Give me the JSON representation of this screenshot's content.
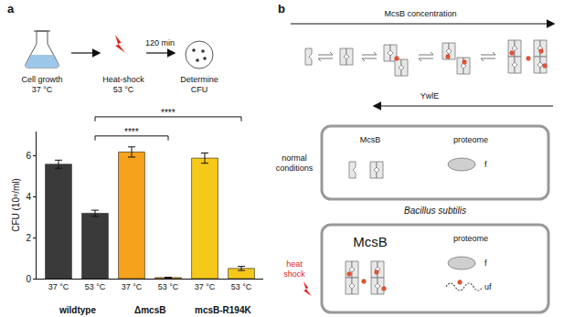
{
  "chart_data": {
    "type": "bar",
    "y_label": "CFU (10⁸/ml)",
    "categories": [
      "37 °C",
      "53 °C",
      "37 °C",
      "53 °C",
      "37 °C",
      "53 °C"
    ],
    "groups": [
      "wildtype",
      "ΔmcsB",
      "mcsB-R194K"
    ],
    "values": [
      5.6,
      3.2,
      6.2,
      0.05,
      5.9,
      0.5
    ],
    "errors": [
      0.2,
      0.15,
      0.25,
      0.02,
      0.25,
      0.1
    ],
    "colors": [
      "#3a3a3a",
      "#3a3a3a",
      "#f5a21c",
      "#f5a21c",
      "#f6c81a",
      "#f6c81a"
    ],
    "ylim": [
      0,
      7.2
    ],
    "yticks": [
      0,
      2,
      4,
      6
    ],
    "grid": false,
    "annotations": [
      {
        "from": 1,
        "to": 3,
        "text": "****"
      },
      {
        "from": 1,
        "to": 5,
        "text": "****"
      }
    ]
  },
  "figure": {
    "panel_labels": [
      "a",
      "b"
    ],
    "workflow": {
      "steps": [
        [
          "Cell growth",
          "37 °C"
        ],
        [
          "Heat-shock",
          "53 °C"
        ],
        [
          "Determine",
          "CFU"
        ]
      ],
      "duration": "120 min"
    },
    "model": {
      "top_arrow": "McsB concentration",
      "bottom_arrow": "YwlE",
      "organism": "Bacillus subtilis",
      "conditions": [
        {
          "label": [
            "normal",
            "conditions"
          ],
          "mcsb": "McsB",
          "proteome": "proteome",
          "states": [
            "f"
          ]
        },
        {
          "label": [
            "heat",
            "shock"
          ],
          "mcsb": "McsB",
          "proteome": "proteome",
          "states": [
            "f",
            "uf"
          ]
        }
      ]
    }
  }
}
